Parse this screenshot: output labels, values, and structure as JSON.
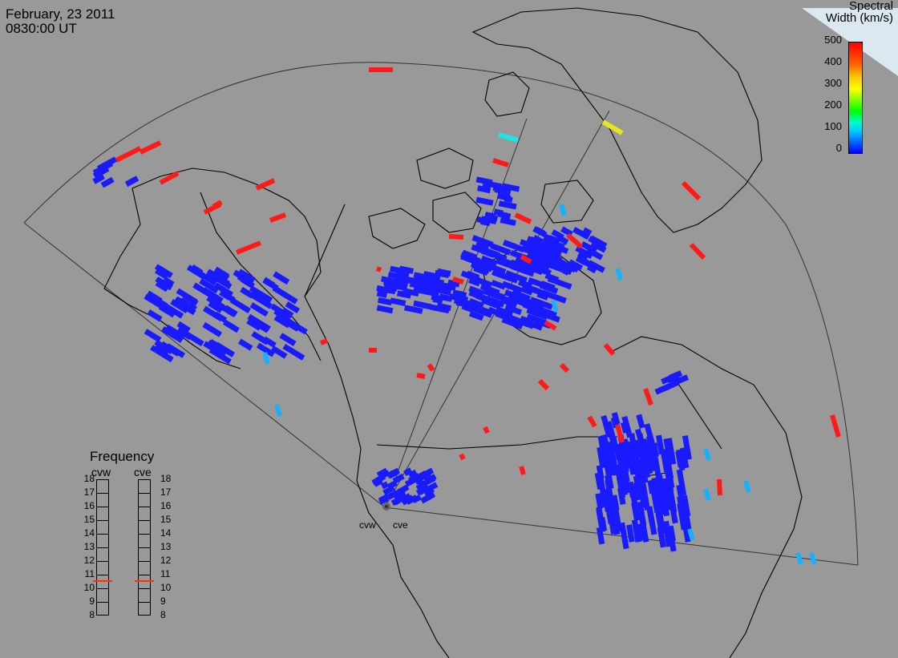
{
  "header": {
    "date": "February, 23 2011",
    "time": "0830:00 UT"
  },
  "legend": {
    "title_line1": "Spectral",
    "title_line2": "Width (km/s)",
    "ticks": [
      "500",
      "400",
      "300",
      "200",
      "100",
      "0"
    ]
  },
  "frequency_panel": {
    "title": "Frequency",
    "radars": [
      {
        "name": "cvw",
        "selected_value": 11
      },
      {
        "name": "cve",
        "selected_value": 11
      }
    ],
    "scale": [
      "18",
      "17",
      "16",
      "15",
      "14",
      "13",
      "12",
      "11",
      "10",
      "9",
      "8"
    ]
  },
  "radar_sites": [
    "cvw",
    "cve"
  ],
  "colors": {
    "background": "#999999",
    "land_outline": "#000000",
    "low_width": "#1a1aff",
    "mid_width": "#1ab0ff",
    "high_width": "#ff1a1a",
    "cyan": "#1ae6e6",
    "yellow": "#e6e61a"
  }
}
